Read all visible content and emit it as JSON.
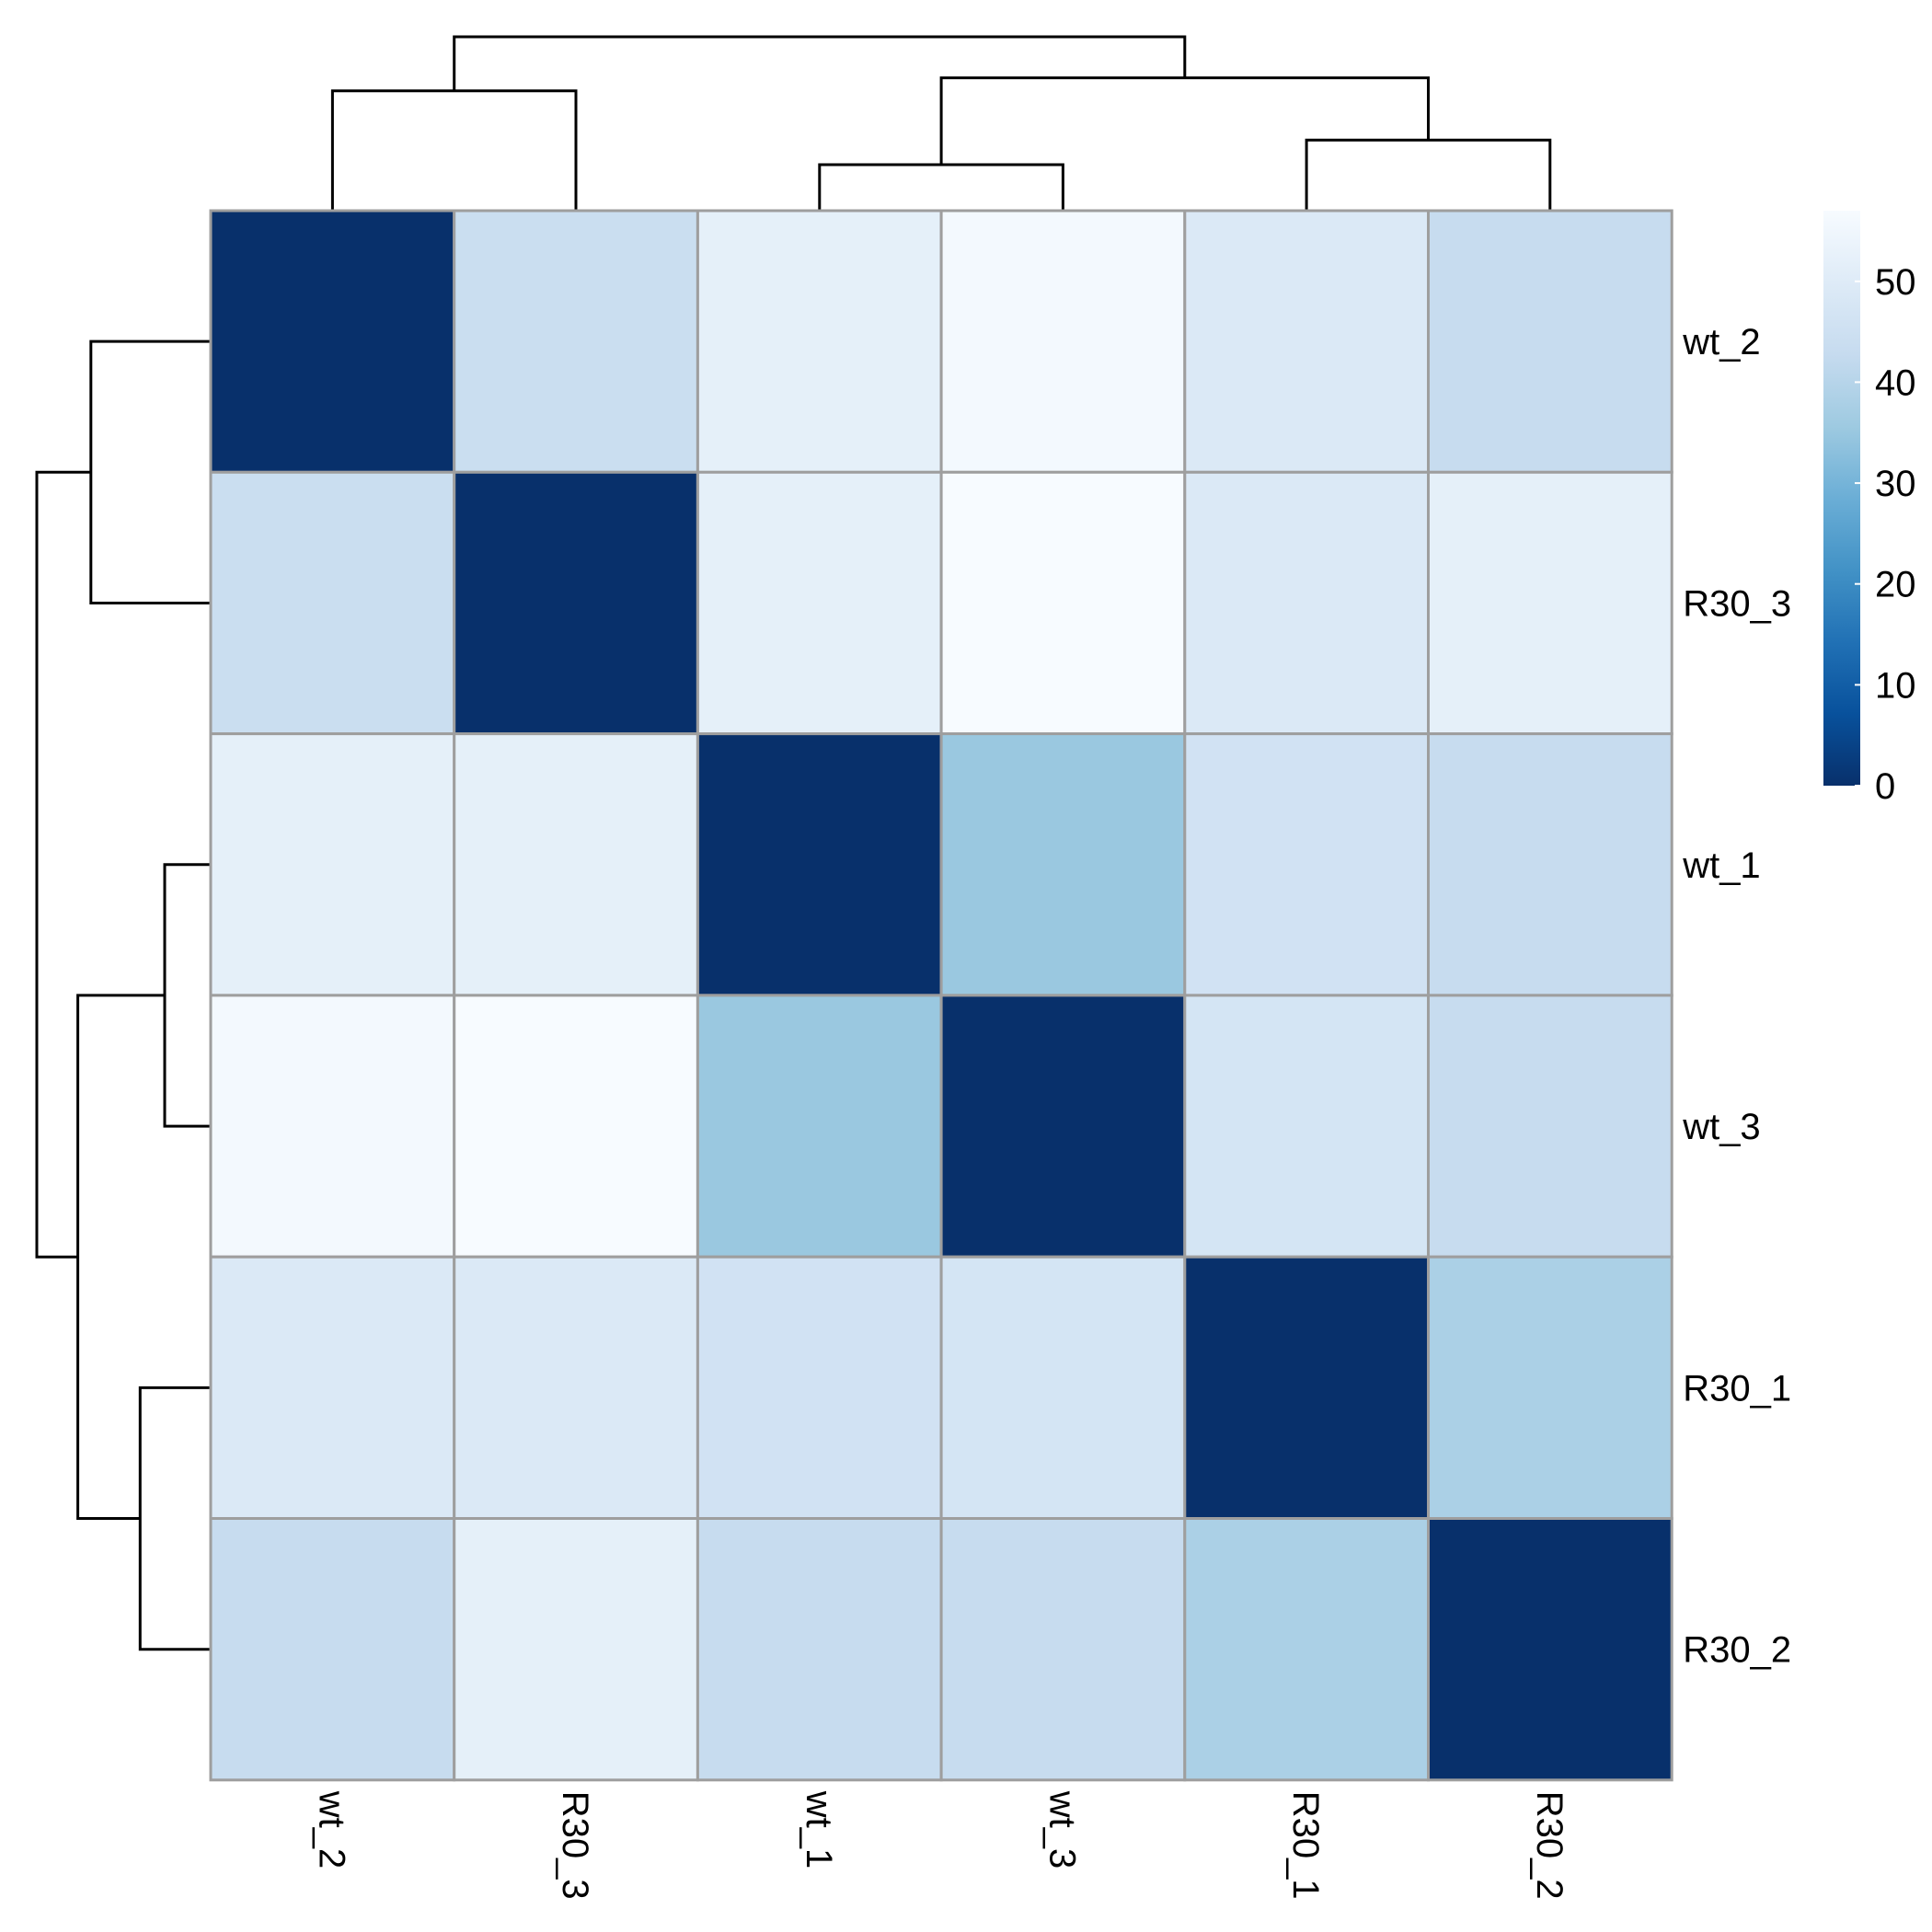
{
  "chart_data": {
    "type": "heatmap",
    "title": "",
    "rows": [
      "wt_2",
      "R30_3",
      "wt_1",
      "wt_3",
      "R30_1",
      "R30_2"
    ],
    "cols": [
      "wt_2",
      "R30_3",
      "wt_1",
      "wt_3",
      "R30_1",
      "R30_2"
    ],
    "values": [
      [
        0,
        44,
        52,
        56,
        49,
        43
      ],
      [
        44,
        0,
        52,
        57,
        49,
        52
      ],
      [
        52,
        52,
        0,
        35,
        46,
        43
      ],
      [
        56,
        57,
        35,
        0,
        47,
        43
      ],
      [
        49,
        49,
        46,
        47,
        0,
        38
      ],
      [
        43,
        52,
        43,
        43,
        38,
        0
      ]
    ],
    "color_scale": {
      "min": 0,
      "max": 57,
      "colors": [
        "#08306b",
        "#08519c",
        "#2171b5",
        "#4292c6",
        "#6baed6",
        "#9ecae1",
        "#c6dbef",
        "#deebf7",
        "#f7fbff"
      ],
      "ticks": [
        0,
        10,
        20,
        30,
        40,
        50
      ]
    },
    "legend_position": "top-right",
    "cell_border_color": "#9e9e9e",
    "col_dendrogram": {
      "order": [
        "wt_2",
        "R30_3",
        "wt_1",
        "wt_3",
        "R30_1",
        "R30_2"
      ],
      "merges": [
        {
          "a": [
            "wt_1"
          ],
          "b": [
            "wt_3"
          ],
          "height": 35
        },
        {
          "a": [
            "R30_1"
          ],
          "b": [
            "R30_2"
          ],
          "height": 38
        },
        {
          "a": [
            "wt_2"
          ],
          "b": [
            "R30_3"
          ],
          "height": 44
        },
        {
          "a": [
            "wt_1",
            "wt_3"
          ],
          "b": [
            "R30_1",
            "R30_2"
          ],
          "height": 45.6
        },
        {
          "a": [
            "wt_2",
            "R30_3"
          ],
          "b": [
            "wt_1",
            "wt_3",
            "R30_1",
            "R30_2"
          ],
          "height": 50.6
        }
      ]
    },
    "row_dendrogram": {
      "order": [
        "wt_2",
        "R30_3",
        "wt_1",
        "wt_3",
        "R30_1",
        "R30_2"
      ],
      "merges": [
        {
          "a": [
            "wt_1"
          ],
          "b": [
            "wt_3"
          ],
          "height": 35
        },
        {
          "a": [
            "R30_1"
          ],
          "b": [
            "R30_2"
          ],
          "height": 38
        },
        {
          "a": [
            "wt_2"
          ],
          "b": [
            "R30_3"
          ],
          "height": 44
        },
        {
          "a": [
            "wt_1",
            "wt_3"
          ],
          "b": [
            "R30_1",
            "R30_2"
          ],
          "height": 45.6
        },
        {
          "a": [
            "wt_2",
            "R30_3"
          ],
          "b": [
            "wt_1",
            "wt_3",
            "R30_1",
            "R30_2"
          ],
          "height": 50.6
        }
      ]
    }
  }
}
